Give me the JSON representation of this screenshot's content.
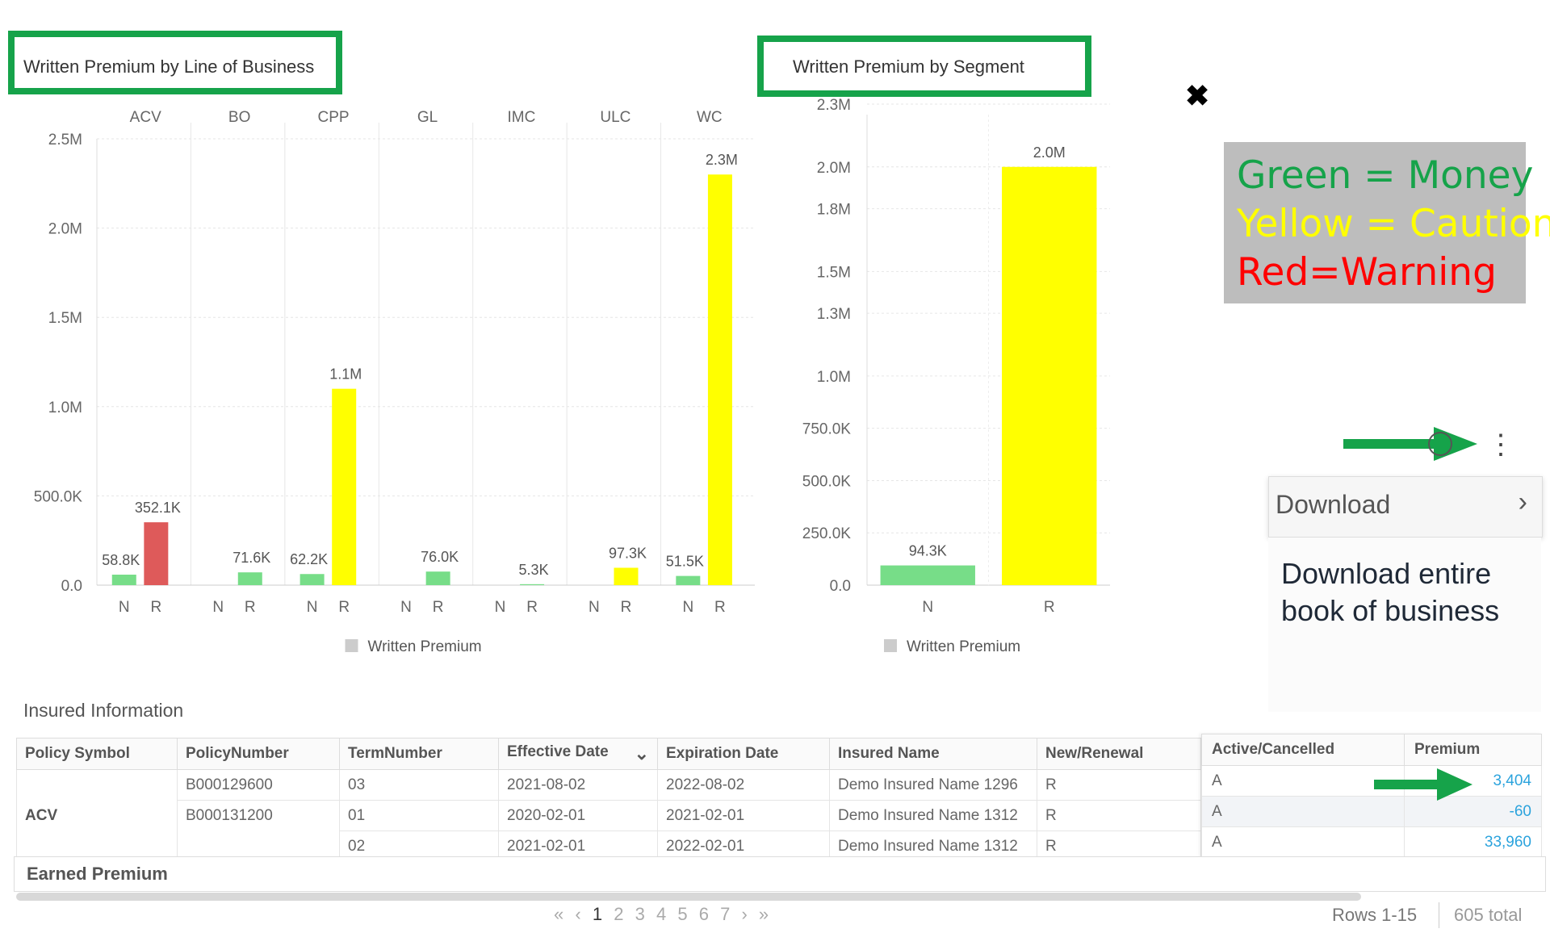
{
  "charts": {
    "lob": {
      "title": "Written Premium by Line of Business",
      "legend": "Written Premium"
    },
    "segment": {
      "title": "Written Premium by Segment",
      "legend": "Written Premium"
    }
  },
  "chart_data": [
    {
      "type": "bar",
      "title": "Written Premium by Line of Business",
      "group_labels": [
        "ACV",
        "BO",
        "CPP",
        "GL",
        "IMC",
        "ULC",
        "WC"
      ],
      "sub_categories": [
        "N",
        "R"
      ],
      "yticks": [
        "0.0",
        "500.0K",
        "1.0M",
        "1.5M",
        "2.0M",
        "2.5M"
      ],
      "ylim": [
        0,
        2500000
      ],
      "grid": true,
      "legend": "Written Premium",
      "bars": [
        {
          "group": "ACV",
          "cat": "N",
          "value": 58800,
          "label": "58.8K",
          "color": "#77dd88"
        },
        {
          "group": "ACV",
          "cat": "R",
          "value": 352100,
          "label": "352.1K",
          "color": "#de5a5a"
        },
        {
          "group": "BO",
          "cat": "R",
          "value": 71600,
          "label": "71.6K",
          "color": "#77dd88"
        },
        {
          "group": "CPP",
          "cat": "N",
          "value": 62200,
          "label": "62.2K",
          "color": "#77dd88"
        },
        {
          "group": "CPP",
          "cat": "R",
          "value": 1100000,
          "label": "1.1M",
          "color": "#ffff00"
        },
        {
          "group": "GL",
          "cat": "R",
          "value": 76000,
          "label": "76.0K",
          "color": "#77dd88"
        },
        {
          "group": "IMC",
          "cat": "R",
          "value": 5300,
          "label": "5.3K",
          "color": "#77dd88"
        },
        {
          "group": "ULC",
          "cat": "R",
          "value": 97300,
          "label": "97.3K",
          "color": "#ffff00"
        },
        {
          "group": "WC",
          "cat": "N",
          "value": 51500,
          "label": "51.5K",
          "color": "#77dd88"
        },
        {
          "group": "WC",
          "cat": "R",
          "value": 2300000,
          "label": "2.3M",
          "color": "#ffff00"
        }
      ]
    },
    {
      "type": "bar",
      "title": "Written Premium by Segment",
      "categories": [
        "N",
        "R"
      ],
      "values": [
        94300,
        2000000
      ],
      "labels": [
        "94.3K",
        "2.0M"
      ],
      "colors": [
        "#77dd88",
        "#ffff00"
      ],
      "yticks": [
        "0.0",
        "250.0K",
        "500.0K",
        "750.0K",
        "1.0M",
        "1.3M",
        "1.5M",
        "1.8M",
        "2.0M",
        "2.3M"
      ],
      "ylim": [
        0,
        2250000
      ],
      "grid": true,
      "legend": "Written Premium"
    }
  ],
  "close_icon": "✖",
  "color_legend": [
    {
      "text": "Green = Money",
      "color": "#16a34a"
    },
    {
      "text": "Yellow = Caution",
      "color": "#ffff00"
    },
    {
      "text": "Red=Warning",
      "color": "#ff0000"
    }
  ],
  "kebab_icon": "⋮",
  "download": {
    "label": "Download",
    "chevron": "›",
    "callout": "Download entire book of business"
  },
  "insured": {
    "title": "Insured Information",
    "columns": [
      "Policy Symbol",
      "PolicyNumber",
      "TermNumber",
      "Effective Date",
      "Expiration Date",
      "Insured Name",
      "New/Renewal"
    ],
    "sort_icon": "⌄",
    "rows": [
      {
        "symbol": "ACV",
        "policy": "B000129600",
        "term": "03",
        "effective": "2021-08-02",
        "expiration": "2022-08-02",
        "name": "Demo Insured Name 1296",
        "nr": "R"
      },
      {
        "symbol": "",
        "policy": "B000131200",
        "term": "01",
        "effective": "2020-02-01",
        "expiration": "2021-02-01",
        "name": "Demo Insured Name 1312",
        "nr": "R"
      },
      {
        "symbol": "",
        "policy": "",
        "term": "02",
        "effective": "2021-02-01",
        "expiration": "2022-02-01",
        "name": "Demo Insured Name 1312",
        "nr": "R"
      }
    ],
    "right_columns": [
      "Active/Cancelled",
      "Premium"
    ],
    "right_rows": [
      {
        "status": "A",
        "premium": "3,404"
      },
      {
        "status": "A",
        "premium": "-60"
      },
      {
        "status": "A",
        "premium": "33,960"
      }
    ],
    "earned_label": "Earned Premium"
  },
  "pagination": {
    "first": "«",
    "prev": "‹",
    "pages": [
      "1",
      "2",
      "3",
      "4",
      "5",
      "6",
      "7"
    ],
    "active_page": "1",
    "next": "›",
    "last": "»",
    "rows_label": "Rows 1-15",
    "total_label": "605 total"
  }
}
